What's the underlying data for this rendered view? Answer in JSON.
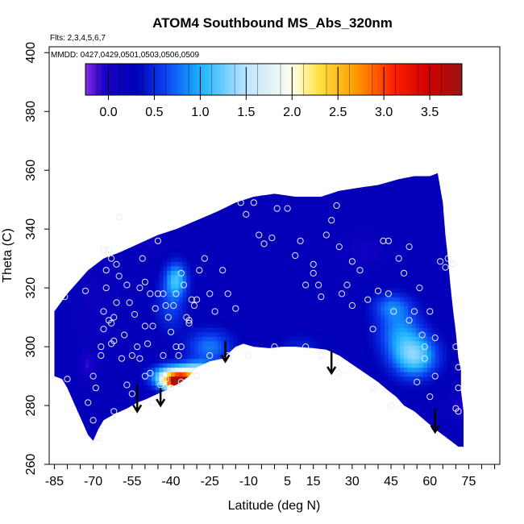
{
  "chart_data": {
    "type": "heatmap",
    "title": "ATOM4 Southbound MS_Abs_320nm",
    "notes": [
      "Flts: 2,3,4,5,6,7",
      "MMDD: 0427,0429,0501,0503,0506,0509"
    ],
    "xlabel": "Latitude (deg N)",
    "ylabel": "Theta (C)",
    "xlim": [
      -87,
      87
    ],
    "ylim": [
      260,
      402
    ],
    "x_ticks": [
      -85,
      -70,
      -55,
      -40,
      -25,
      -10,
      5,
      15,
      30,
      45,
      60,
      75
    ],
    "x_minor_ticks": [
      -85,
      -80,
      -75,
      -70,
      -65,
      -60,
      -55,
      -50,
      -45,
      -40,
      -35,
      -30,
      -25,
      -20,
      -15,
      -10,
      -5,
      0,
      5,
      10,
      15,
      20,
      25,
      30,
      35,
      40,
      45,
      50,
      55,
      60,
      65,
      70,
      75,
      80,
      85
    ],
    "y_ticks": [
      260,
      280,
      300,
      320,
      340,
      360,
      380,
      400
    ],
    "colorbar": {
      "range": [
        -0.25,
        3.85
      ],
      "ticks": [
        0.0,
        0.5,
        1.0,
        1.5,
        2.0,
        2.5,
        3.0,
        3.5
      ],
      "tick_labels": [
        "0.0",
        "0.5",
        "1.0",
        "1.5",
        "2.0",
        "2.5",
        "3.0",
        "3.5"
      ],
      "stops": [
        {
          "v": -0.25,
          "color": "#8a2be2"
        },
        {
          "v": -0.05,
          "color": "#1a00c8"
        },
        {
          "v": 0.3,
          "color": "#0000b8"
        },
        {
          "v": 0.6,
          "color": "#0a3cf0"
        },
        {
          "v": 1.0,
          "color": "#1ab4ff"
        },
        {
          "v": 1.5,
          "color": "#bfe4ff"
        },
        {
          "v": 2.0,
          "color": "#ffffee"
        },
        {
          "v": 2.3,
          "color": "#ffe040"
        },
        {
          "v": 2.7,
          "color": "#ff9a00"
        },
        {
          "v": 3.1,
          "color": "#ff2000"
        },
        {
          "v": 3.5,
          "color": "#d00000"
        },
        {
          "v": 3.85,
          "color": "#9c1414"
        }
      ]
    },
    "field": {
      "background_value": 0.25,
      "features": [
        {
          "x": -38,
          "y": 323,
          "sx": 3,
          "sy": 4,
          "amp": 0.8
        },
        {
          "x": -40,
          "y": 314,
          "sx": 4,
          "sy": 6,
          "amp": 0.35
        },
        {
          "x": -25,
          "y": 300,
          "sx": 6,
          "sy": 4,
          "amp": 0.55
        },
        {
          "x": 10,
          "y": 300,
          "sx": 6,
          "sy": 3,
          "amp": 0.2
        },
        {
          "x": 54,
          "y": 297,
          "sx": 6,
          "sy": 5,
          "amp": 1.0
        },
        {
          "x": 48,
          "y": 306,
          "sx": 6,
          "sy": 6,
          "amp": 0.55
        },
        {
          "x": 45,
          "y": 314,
          "sx": 5,
          "sy": 3,
          "amp": 0.4
        },
        {
          "x": -36,
          "y": 288,
          "sx": 4,
          "sy": 2.0,
          "amp": 3.4
        },
        {
          "x": -40,
          "y": 290,
          "sx": 5,
          "sy": 2.5,
          "amp": 1.4
        },
        {
          "x": -30,
          "y": 292,
          "sx": 5,
          "sy": 2.0,
          "amp": 1.2
        },
        {
          "x": -72,
          "y": 294,
          "sx": 2,
          "sy": 3,
          "amp": -0.35
        },
        {
          "x": -70,
          "y": 318,
          "sx": 4,
          "sy": 8,
          "amp": -0.1
        },
        {
          "x": 35,
          "y": 333,
          "sx": 4,
          "sy": 3,
          "amp": -0.2
        },
        {
          "x": 72,
          "y": 280,
          "sx": 2,
          "sy": 3,
          "amp": -0.3
        },
        {
          "x": -48,
          "y": 337,
          "sx": 3,
          "sy": 3,
          "amp": -0.2
        }
      ],
      "outline": [
        [
          -85,
          290
        ],
        [
          -85,
          312
        ],
        [
          -80,
          318
        ],
        [
          -72,
          326
        ],
        [
          -66,
          330
        ],
        [
          -60,
          332
        ],
        [
          -55,
          334
        ],
        [
          -50,
          336
        ],
        [
          -45,
          338
        ],
        [
          -38,
          340
        ],
        [
          -30,
          343
        ],
        [
          -22,
          346
        ],
        [
          -15,
          349
        ],
        [
          -8,
          351
        ],
        [
          0,
          352
        ],
        [
          8,
          351
        ],
        [
          18,
          351
        ],
        [
          25,
          353
        ],
        [
          32,
          354
        ],
        [
          40,
          355
        ],
        [
          48,
          357
        ],
        [
          54,
          358
        ],
        [
          60,
          358
        ],
        [
          63,
          359
        ],
        [
          65,
          349
        ],
        [
          66,
          338
        ],
        [
          67,
          330
        ],
        [
          68,
          320
        ],
        [
          69,
          312
        ],
        [
          70,
          305
        ],
        [
          71,
          296
        ],
        [
          72,
          292
        ],
        [
          72,
          285
        ],
        [
          73,
          278
        ],
        [
          73,
          270
        ],
        [
          73,
          266
        ],
        [
          71,
          266
        ],
        [
          68,
          268
        ],
        [
          65,
          270
        ],
        [
          62,
          272
        ],
        [
          58,
          275
        ],
        [
          54,
          278
        ],
        [
          50,
          280
        ],
        [
          47,
          283
        ],
        [
          44,
          285
        ],
        [
          40,
          288
        ],
        [
          35,
          291
        ],
        [
          30,
          294
        ],
        [
          25,
          297
        ],
        [
          20,
          299
        ],
        [
          15,
          299.5
        ],
        [
          8,
          300
        ],
        [
          3,
          300
        ],
        [
          -2,
          299.5
        ],
        [
          -8,
          300
        ],
        [
          -12,
          301
        ],
        [
          -15,
          300
        ],
        [
          -20,
          296
        ],
        [
          -25,
          295
        ],
        [
          -30,
          293
        ],
        [
          -33,
          290
        ],
        [
          -36,
          288
        ],
        [
          -40,
          286
        ],
        [
          -45,
          284
        ],
        [
          -50,
          282
        ],
        [
          -53,
          281
        ],
        [
          -57,
          279
        ],
        [
          -62,
          277
        ],
        [
          -66,
          275
        ],
        [
          -68,
          272
        ],
        [
          -70,
          268
        ],
        [
          -72,
          270
        ],
        [
          -74,
          274
        ],
        [
          -76,
          278
        ],
        [
          -78,
          282
        ],
        [
          -80,
          286
        ],
        [
          -82,
          289
        ]
      ]
    },
    "points": [
      [
        -81,
        317
      ],
      [
        -80,
        289
      ],
      [
        -73,
        319
      ],
      [
        -72,
        281
      ],
      [
        -70,
        290
      ],
      [
        -69,
        286
      ],
      [
        -67,
        297
      ],
      [
        -67,
        300
      ],
      [
        -66,
        306
      ],
      [
        -66,
        312
      ],
      [
        -65,
        320
      ],
      [
        -65,
        326
      ],
      [
        -64,
        333
      ],
      [
        -63,
        330
      ],
      [
        -63,
        308
      ],
      [
        -62,
        302
      ],
      [
        -62,
        310
      ],
      [
        -61,
        315
      ],
      [
        -60,
        324
      ],
      [
        -59,
        296
      ],
      [
        -58,
        304
      ],
      [
        -57,
        321
      ],
      [
        -56,
        315
      ],
      [
        -55,
        297
      ],
      [
        -54,
        311
      ],
      [
        -53,
        300
      ],
      [
        -52,
        320
      ],
      [
        -51,
        330
      ],
      [
        -50,
        322
      ],
      [
        -49,
        301
      ],
      [
        -48,
        291
      ],
      [
        -47,
        307
      ],
      [
        -46,
        313
      ],
      [
        -45,
        318
      ],
      [
        -44,
        283
      ],
      [
        -43,
        318
      ],
      [
        -42,
        314
      ],
      [
        -41,
        310
      ],
      [
        -40,
        305
      ],
      [
        -39,
        314
      ],
      [
        -38,
        300
      ],
      [
        -37,
        297
      ],
      [
        -36,
        325
      ],
      [
        -35,
        321
      ],
      [
        -34,
        310
      ],
      [
        -33,
        308
      ],
      [
        -32,
        316
      ],
      [
        -31,
        314
      ],
      [
        -30,
        316
      ],
      [
        -29,
        326
      ],
      [
        -27,
        330
      ],
      [
        -25,
        318
      ],
      [
        -23,
        312
      ],
      [
        -20,
        326
      ],
      [
        -18,
        318
      ],
      [
        -15,
        313
      ],
      [
        -13,
        349
      ],
      [
        -11,
        345
      ],
      [
        -8,
        349
      ],
      [
        -6,
        338
      ],
      [
        -4,
        335
      ],
      [
        -1,
        337
      ],
      [
        1,
        347
      ],
      [
        5,
        347
      ],
      [
        8,
        331
      ],
      [
        10,
        336
      ],
      [
        12,
        321
      ],
      [
        15,
        325
      ],
      [
        15,
        328
      ],
      [
        17,
        321
      ],
      [
        18,
        317
      ],
      [
        20,
        338
      ],
      [
        22,
        343
      ],
      [
        24,
        348
      ],
      [
        26,
        318
      ],
      [
        28,
        321
      ],
      [
        30,
        329
      ],
      [
        33,
        326
      ],
      [
        36,
        316
      ],
      [
        38,
        306
      ],
      [
        40,
        319
      ],
      [
        42,
        336
      ],
      [
        44,
        318
      ],
      [
        46,
        312
      ],
      [
        48,
        330
      ],
      [
        50,
        325
      ],
      [
        52,
        334
      ],
      [
        54,
        312
      ],
      [
        56,
        320
      ],
      [
        57,
        304
      ],
      [
        58,
        300
      ],
      [
        60,
        312
      ],
      [
        62,
        303
      ],
      [
        64,
        329
      ],
      [
        66,
        327
      ],
      [
        67,
        330
      ],
      [
        69,
        328
      ],
      [
        70,
        300
      ],
      [
        71,
        293
      ],
      [
        -70,
        275
      ],
      [
        -68,
        269
      ],
      [
        -62,
        278
      ],
      [
        -57,
        287
      ],
      [
        -55,
        284
      ],
      [
        -52,
        296
      ],
      [
        -50,
        290
      ],
      [
        -47,
        281
      ],
      [
        -44,
        287
      ],
      [
        -42,
        289
      ],
      [
        -40,
        286
      ],
      [
        -36,
        288
      ],
      [
        -30,
        290
      ],
      [
        -25,
        297
      ],
      [
        -18,
        297
      ],
      [
        -10,
        297
      ],
      [
        0,
        300
      ],
      [
        12,
        300
      ],
      [
        18,
        297
      ],
      [
        25,
        291
      ],
      [
        38,
        286
      ],
      [
        45,
        280
      ],
      [
        55,
        288
      ],
      [
        58,
        296
      ],
      [
        70,
        279
      ],
      [
        71,
        278
      ],
      [
        71,
        286
      ],
      [
        44,
        336
      ],
      [
        25,
        334
      ],
      [
        -60,
        344
      ],
      [
        -45,
        336
      ],
      [
        -48,
        318
      ],
      [
        -50,
        307
      ],
      [
        -43,
        297
      ],
      [
        -38,
        318
      ],
      [
        -33,
        309
      ],
      [
        -63,
        301
      ],
      [
        -64,
        309
      ],
      [
        -66,
        333
      ],
      [
        -61,
        328
      ],
      [
        60,
        283
      ],
      [
        62,
        290
      ],
      [
        -36,
        300
      ],
      [
        30,
        314
      ],
      [
        52,
        309
      ]
    ],
    "arrows": [
      {
        "x": -53,
        "y_top": 287,
        "y_tip": 278
      },
      {
        "x": -44,
        "y_top": 286,
        "y_tip": 280
      },
      {
        "x": -19,
        "y_top": 302,
        "y_tip": 295
      },
      {
        "x": 22,
        "y_top": 299,
        "y_tip": 291
      },
      {
        "x": 62,
        "y_top": 279,
        "y_tip": 271
      }
    ]
  }
}
